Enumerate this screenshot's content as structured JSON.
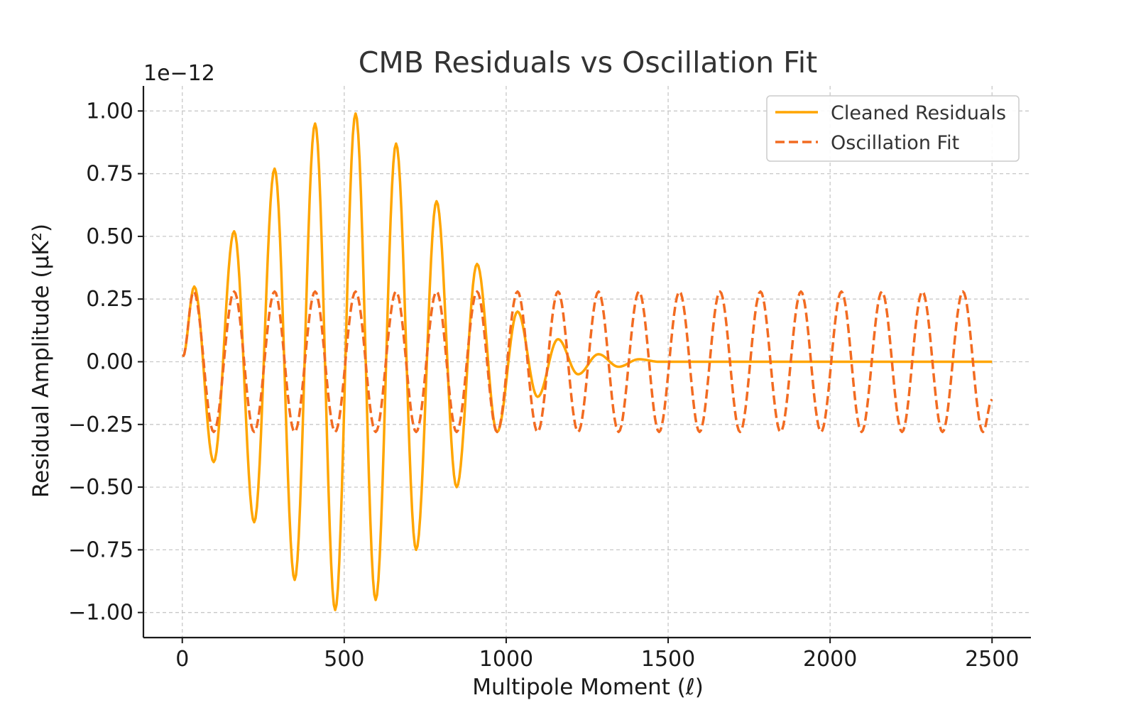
{
  "colors": {
    "residuals": "#FFA500",
    "fit": "#F26B21"
  },
  "chart_data": {
    "type": "line",
    "title": "CMB Residuals vs Oscillation Fit",
    "xlabel": "Multipole Moment (ℓ)",
    "ylabel": "Residual Amplitude (μK²)",
    "y_offset_label": "1e−12",
    "xlim": [
      -120,
      2620
    ],
    "ylim": [
      -1.1,
      1.1
    ],
    "x_ticks": [
      0,
      500,
      1000,
      1500,
      2000,
      2500
    ],
    "x_tick_labels": [
      "0",
      "500",
      "1000",
      "1500",
      "2000",
      "2500"
    ],
    "y_ticks": [
      -1.0,
      -0.75,
      -0.5,
      -0.25,
      0.0,
      0.25,
      0.5,
      0.75,
      1.0
    ],
    "y_tick_labels": [
      "−1.00",
      "−0.75",
      "−0.50",
      "−0.25",
      "0.00",
      "0.25",
      "0.50",
      "0.75",
      "1.00"
    ],
    "grid": true,
    "legend_position": "top-right",
    "series": [
      {
        "name": "Cleaned Residuals",
        "style": "solid",
        "x": [
          2,
          37,
          97,
          160,
          222,
          285,
          347,
          410,
          472,
          535,
          597,
          660,
          722,
          785,
          847,
          910,
          972,
          1035,
          1097,
          1160,
          1222,
          1285,
          1347,
          1410,
          1472,
          1535,
          1600,
          2000,
          2500
        ],
        "y": [
          0.02,
          0.3,
          -0.4,
          0.52,
          -0.64,
          0.77,
          -0.87,
          0.95,
          -0.99,
          0.99,
          -0.95,
          0.87,
          -0.75,
          0.64,
          -0.5,
          0.39,
          -0.28,
          0.2,
          -0.14,
          0.09,
          -0.05,
          0.03,
          -0.02,
          0.01,
          0.0,
          0.0,
          0.0,
          0.0,
          0.0
        ]
      },
      {
        "name": "Oscillation Fit",
        "style": "dashed",
        "x": [
          2,
          35,
          97,
          160,
          222,
          285,
          347,
          410,
          472,
          535,
          597,
          660,
          722,
          785,
          847,
          910,
          972,
          1035,
          1097,
          1160,
          1222,
          1285,
          1347,
          1410,
          1472,
          1535,
          1597,
          1660,
          1722,
          1785,
          1847,
          1910,
          1972,
          2035,
          2097,
          2160,
          2222,
          2285,
          2347,
          2410,
          2472,
          2500
        ],
        "y": [
          0.02,
          0.28,
          -0.28,
          0.28,
          -0.28,
          0.28,
          -0.28,
          0.28,
          -0.28,
          0.28,
          -0.28,
          0.28,
          -0.28,
          0.28,
          -0.28,
          0.28,
          -0.28,
          0.28,
          -0.28,
          0.28,
          -0.28,
          0.28,
          -0.28,
          0.28,
          -0.28,
          0.28,
          -0.28,
          0.28,
          -0.28,
          0.28,
          -0.28,
          0.28,
          -0.28,
          0.28,
          -0.28,
          0.28,
          -0.28,
          0.28,
          -0.28,
          0.28,
          -0.28,
          -0.15
        ]
      }
    ]
  }
}
